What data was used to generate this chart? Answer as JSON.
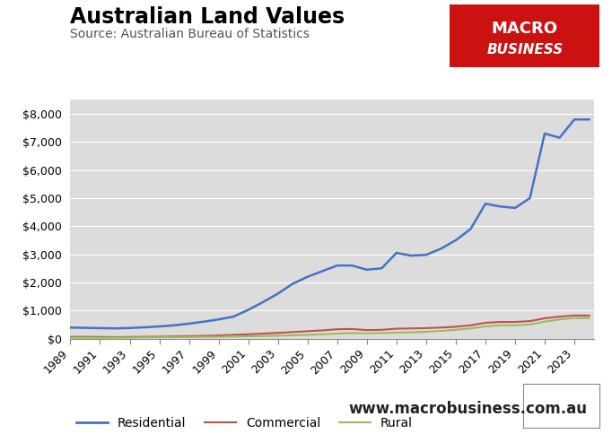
{
  "title": "Australian Land Values",
  "subtitle": "Source: Australian Bureau of Statistics",
  "watermark": "www.macrobusiness.com.au",
  "years": [
    1989,
    1990,
    1991,
    1992,
    1993,
    1994,
    1995,
    1996,
    1997,
    1998,
    1999,
    2000,
    2001,
    2002,
    2003,
    2004,
    2005,
    2006,
    2007,
    2008,
    2009,
    2010,
    2011,
    2012,
    2013,
    2014,
    2015,
    2016,
    2017,
    2018,
    2019,
    2020,
    2021,
    2022,
    2023,
    2024
  ],
  "residential": [
    390,
    380,
    370,
    360,
    375,
    400,
    430,
    470,
    530,
    600,
    680,
    780,
    1020,
    1300,
    1600,
    1950,
    2200,
    2400,
    2600,
    2600,
    2450,
    2500,
    3050,
    2950,
    2980,
    3200,
    3500,
    3900,
    4800,
    4700,
    4650,
    5000,
    7300,
    7150,
    7800,
    7800
  ],
  "commercial": [
    60,
    60,
    55,
    50,
    55,
    60,
    65,
    75,
    85,
    95,
    110,
    130,
    150,
    175,
    200,
    230,
    260,
    290,
    330,
    340,
    300,
    310,
    350,
    360,
    370,
    390,
    420,
    470,
    560,
    590,
    590,
    620,
    720,
    780,
    820,
    820
  ],
  "rural": [
    30,
    30,
    30,
    30,
    35,
    40,
    45,
    50,
    55,
    60,
    65,
    70,
    80,
    90,
    100,
    115,
    130,
    150,
    175,
    195,
    185,
    195,
    210,
    220,
    240,
    270,
    310,
    360,
    430,
    470,
    470,
    500,
    600,
    680,
    730,
    730
  ],
  "residential_color": "#4472C4",
  "commercial_color": "#C0504D",
  "rural_color": "#9BBB59",
  "fig_background_color": "#FFFFFF",
  "plot_bg_color": "#DCDCDC",
  "ylim": [
    0,
    8500
  ],
  "yticks": [
    0,
    1000,
    2000,
    3000,
    4000,
    5000,
    6000,
    7000,
    8000
  ],
  "title_fontsize": 17,
  "subtitle_fontsize": 10,
  "tick_fontsize": 9,
  "legend_fontsize": 10,
  "watermark_fontsize": 12,
  "macro_box_color": "#CC1111",
  "macro_text_line1": "MACRO",
  "macro_text_line2": "BUSINESS"
}
